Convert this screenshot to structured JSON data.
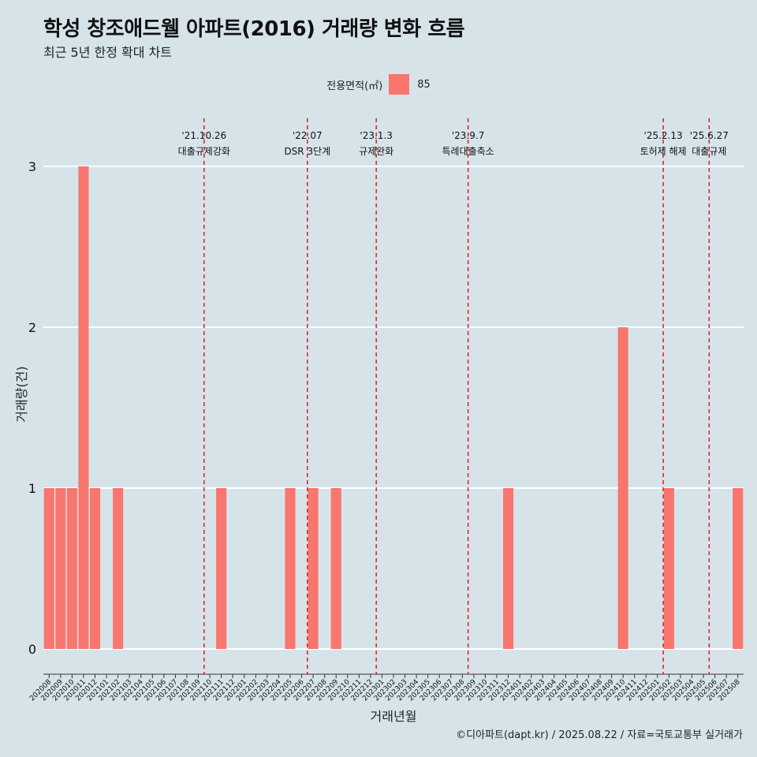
{
  "header": {
    "title": "학성 창조애드웰 아파트(2016) 거래량 변화 흐름",
    "subtitle": "최근 5년 한정 확대 차트"
  },
  "legend": {
    "title": "전용면적(㎡)",
    "items": [
      {
        "label": "85",
        "color": "#f8766d"
      }
    ]
  },
  "footer": "©디아파트(dapt.kr) / 2025.08.22 / 자료=국토교통부 실거래가",
  "colors": {
    "background": "#d6e4ea",
    "bar": "#f8766d",
    "event_line": "#e41a1c",
    "grid": "#ffffff"
  },
  "chart_data": {
    "type": "bar",
    "xlabel": "거래년월",
    "ylabel": "거래량(건)",
    "ylim": [
      -0.15,
      3.3
    ],
    "yticks": [
      0,
      1,
      2,
      3
    ],
    "grid": "horizontal major lines only",
    "legend_position": "top",
    "categories": [
      "202008",
      "202009",
      "202010",
      "202011",
      "202012",
      "202101",
      "202102",
      "202103",
      "202104",
      "202105",
      "202106",
      "202107",
      "202108",
      "202109",
      "202110",
      "202111",
      "202112",
      "202201",
      "202202",
      "202203",
      "202204",
      "202205",
      "202206",
      "202207",
      "202208",
      "202209",
      "202210",
      "202211",
      "202212",
      "202301",
      "202302",
      "202303",
      "202304",
      "202305",
      "202306",
      "202307",
      "202308",
      "202309",
      "202310",
      "202311",
      "202312",
      "202401",
      "202402",
      "202403",
      "202404",
      "202405",
      "202406",
      "202407",
      "202408",
      "202409",
      "202410",
      "202411",
      "202412",
      "202501",
      "202502",
      "202503",
      "202504",
      "202505",
      "202506",
      "202507",
      "202508"
    ],
    "series": [
      {
        "name": "85",
        "values": [
          1,
          1,
          1,
          3,
          1,
          0,
          1,
          0,
          0,
          0,
          0,
          0,
          0,
          0,
          0,
          1,
          0,
          0,
          0,
          0,
          0,
          1,
          0,
          1,
          0,
          1,
          0,
          0,
          0,
          0,
          0,
          0,
          0,
          0,
          0,
          0,
          0,
          0,
          0,
          0,
          1,
          0,
          0,
          0,
          0,
          0,
          0,
          0,
          0,
          0,
          2,
          0,
          0,
          0,
          1,
          0,
          0,
          0,
          0,
          0,
          1
        ]
      }
    ],
    "events": [
      {
        "date": "'21.10.26",
        "label": "대출규제강화",
        "x": "202110"
      },
      {
        "date": "'22.07",
        "label": "DSR 3단계",
        "x": "202207"
      },
      {
        "date": "'23.1.3",
        "label": "규제완화",
        "x": "202301"
      },
      {
        "date": "'23.9.7",
        "label": "특례대출축소",
        "x": "202309"
      },
      {
        "date": "'25.2.13",
        "label": "토허제 해제",
        "x": "202502"
      },
      {
        "date": "'25.6.27",
        "label": "대출규제",
        "x": "202506"
      }
    ]
  }
}
